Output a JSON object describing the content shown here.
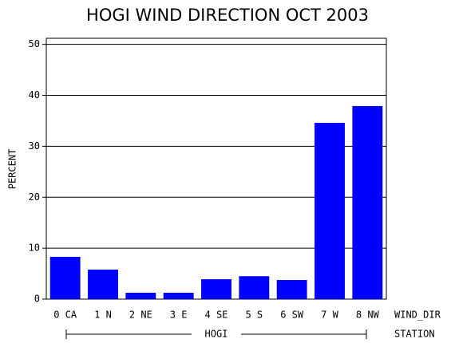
{
  "chart_data": {
    "type": "bar",
    "title": "HOGI WIND DIRECTION OCT 2003",
    "y_label": "PERCENT",
    "x_label": "WIND_DIR",
    "group_label": "STATION",
    "group": "HOGI",
    "categories": [
      "0 CA",
      "1 N",
      "2 NE",
      "3 E",
      "4 SE",
      "5 S",
      "6 SW",
      "7 W",
      "8 NW"
    ],
    "values": [
      8.3,
      5.8,
      1.25,
      1.25,
      3.9,
      4.5,
      3.75,
      34.6,
      37.9
    ],
    "color": "#0000ff",
    "ylim": [
      0,
      51.2
    ],
    "yticks": [
      0,
      10,
      20,
      30,
      40,
      50
    ],
    "grid": true
  }
}
